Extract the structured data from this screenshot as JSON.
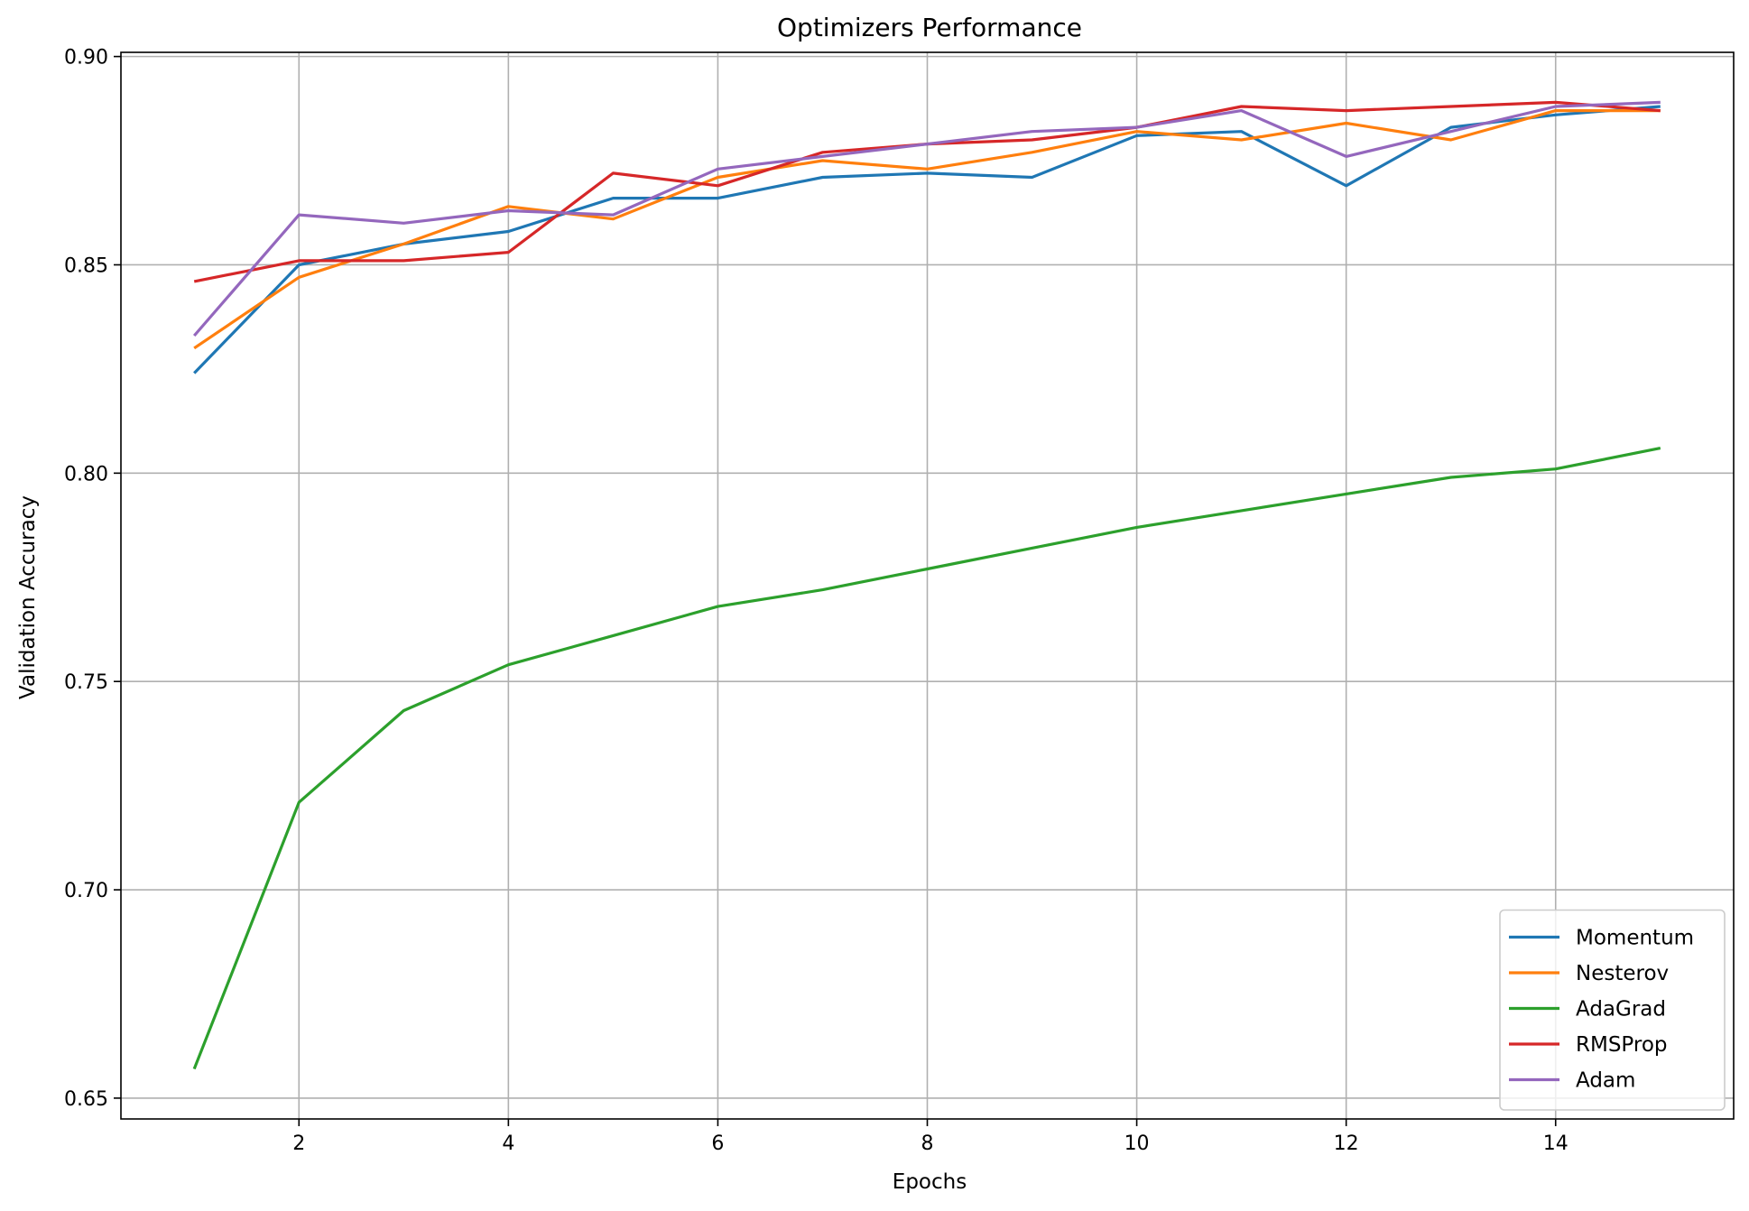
{
  "chart_data": {
    "type": "line",
    "title": "Optimizers Performance",
    "xlabel": "Epochs",
    "ylabel": "Validation Accuracy",
    "xlim": [
      0.3,
      15.7
    ],
    "ylim": [
      0.645,
      0.901
    ],
    "xticks": [
      2,
      4,
      6,
      8,
      10,
      12,
      14
    ],
    "yticks": [
      0.65,
      0.7,
      0.75,
      0.8,
      0.85,
      0.9
    ],
    "ytick_labels": [
      "0.65",
      "0.70",
      "0.75",
      "0.80",
      "0.85",
      "0.90"
    ],
    "grid": true,
    "legend_position": "lower-right",
    "x": [
      1,
      2,
      3,
      4,
      5,
      6,
      7,
      8,
      9,
      10,
      11,
      12,
      13,
      14,
      15
    ],
    "series": [
      {
        "name": "Momentum",
        "color": "#1f77b4",
        "values": [
          0.824,
          0.85,
          0.855,
          0.858,
          0.866,
          0.866,
          0.871,
          0.872,
          0.871,
          0.881,
          0.882,
          0.869,
          0.883,
          0.886,
          0.888
        ]
      },
      {
        "name": "Nesterov",
        "color": "#ff7f0e",
        "values": [
          0.83,
          0.847,
          0.855,
          0.864,
          0.861,
          0.871,
          0.875,
          0.873,
          0.877,
          0.882,
          0.88,
          0.884,
          0.88,
          0.887,
          0.887
        ]
      },
      {
        "name": "AdaGrad",
        "color": "#2ca02c",
        "values": [
          0.657,
          0.721,
          0.743,
          0.754,
          0.761,
          0.768,
          0.772,
          0.777,
          0.782,
          0.787,
          0.791,
          0.795,
          0.799,
          0.801,
          0.806
        ]
      },
      {
        "name": "RMSProp",
        "color": "#d62728",
        "values": [
          0.846,
          0.851,
          0.851,
          0.853,
          0.872,
          0.869,
          0.877,
          0.879,
          0.88,
          0.883,
          0.888,
          0.887,
          0.888,
          0.889,
          0.887
        ]
      },
      {
        "name": "Adam",
        "color": "#9467bd",
        "values": [
          0.833,
          0.862,
          0.86,
          0.863,
          0.862,
          0.873,
          0.876,
          0.879,
          0.882,
          0.883,
          0.887,
          0.876,
          0.882,
          0.888,
          0.889
        ]
      }
    ]
  }
}
